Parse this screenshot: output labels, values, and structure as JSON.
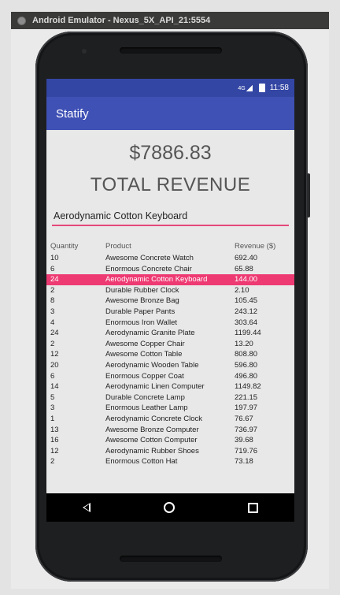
{
  "window": {
    "title": "Android Emulator - Nexus_5X_API_21:5554"
  },
  "status_bar": {
    "time": "11:58",
    "network": "4G"
  },
  "app_bar": {
    "title": "Statify"
  },
  "summary": {
    "amount": "$7886.83",
    "label": "TOTAL REVENUE"
  },
  "search": {
    "value": "Aerodynamic Cotton Keyboard"
  },
  "table": {
    "headers": {
      "quantity": "Quantity",
      "product": "Product",
      "revenue": "Revenue ($)"
    },
    "highlighted_row": 2,
    "rows": [
      {
        "quantity": "10",
        "product": "Awesome Concrete Watch",
        "revenue": "692.40"
      },
      {
        "quantity": "6",
        "product": "Enormous Concrete Chair",
        "revenue": "65.88"
      },
      {
        "quantity": "24",
        "product": "Aerodynamic Cotton Keyboard",
        "revenue": "144.00"
      },
      {
        "quantity": "2",
        "product": "Durable Rubber Clock",
        "revenue": "2.10"
      },
      {
        "quantity": "8",
        "product": "Awesome Bronze Bag",
        "revenue": "105.45"
      },
      {
        "quantity": "3",
        "product": "Durable Paper Pants",
        "revenue": "243.12"
      },
      {
        "quantity": "4",
        "product": "Enormous Iron Wallet",
        "revenue": "303.64"
      },
      {
        "quantity": "24",
        "product": "Aerodynamic Granite Plate",
        "revenue": "1199.44"
      },
      {
        "quantity": "2",
        "product": "Awesome Copper Chair",
        "revenue": "13.20"
      },
      {
        "quantity": "12",
        "product": "Awesome Cotton Table",
        "revenue": "808.80"
      },
      {
        "quantity": "20",
        "product": "Aerodynamic Wooden Table",
        "revenue": "596.80"
      },
      {
        "quantity": "6",
        "product": "Enormous Copper Coat",
        "revenue": "496.80"
      },
      {
        "quantity": "14",
        "product": "Aerodynamic Linen Computer",
        "revenue": "1149.82"
      },
      {
        "quantity": "5",
        "product": "Durable Concrete Lamp",
        "revenue": "221.15"
      },
      {
        "quantity": "3",
        "product": "Enormous Leather Lamp",
        "revenue": "197.97"
      },
      {
        "quantity": "1",
        "product": "Aerodynamic Concrete Clock",
        "revenue": "76.67"
      },
      {
        "quantity": "13",
        "product": "Awesome Bronze Computer",
        "revenue": "736.97"
      },
      {
        "quantity": "16",
        "product": "Awesome Cotton Computer",
        "revenue": "39.68"
      },
      {
        "quantity": "12",
        "product": "Aerodynamic Rubber Shoes",
        "revenue": "719.76"
      },
      {
        "quantity": "2",
        "product": "Enormous Cotton Hat",
        "revenue": "73.18"
      }
    ]
  },
  "colors": {
    "primary": "#3f51b5",
    "status_bar": "#3346a4",
    "accent": "#ee3a73"
  }
}
